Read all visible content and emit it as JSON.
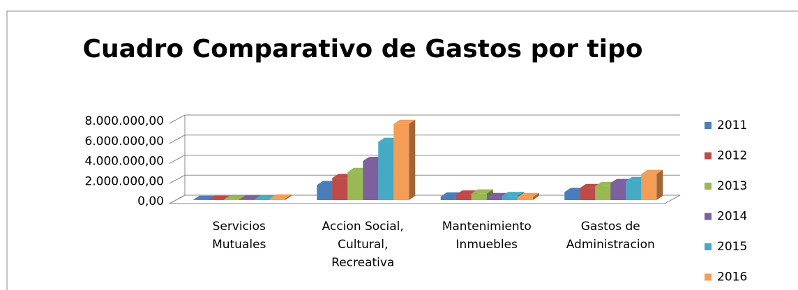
{
  "chart_data": {
    "type": "bar3d",
    "title": "Cuadro Comparativo de Gastos por tipo",
    "categories": [
      "Servicios Mutuales",
      "Accion Social, Cultural, Recreativa",
      "Mantenimiento Inmuebles",
      "Gastos de Administracion"
    ],
    "series": [
      {
        "name": "2011",
        "color": "#4a7ebb",
        "values": [
          20000,
          1500000,
          350000,
          800000
        ]
      },
      {
        "name": "2012",
        "color": "#be4b48",
        "values": [
          30000,
          2200000,
          550000,
          1200000
        ]
      },
      {
        "name": "2013",
        "color": "#98b954",
        "values": [
          40000,
          2800000,
          650000,
          1400000
        ]
      },
      {
        "name": "2014",
        "color": "#7d60a0",
        "values": [
          50000,
          3900000,
          300000,
          1700000
        ]
      },
      {
        "name": "2015",
        "color": "#46aac5",
        "values": [
          80000,
          5800000,
          400000,
          1900000
        ]
      },
      {
        "name": "2016",
        "color": "#f59d56",
        "values": [
          150000,
          7600000,
          300000,
          2600000
        ]
      }
    ],
    "ylim": [
      0,
      8000000
    ],
    "yticks": [
      {
        "value": 0,
        "label": "0,00"
      },
      {
        "value": 2000000,
        "label": "2.000.000,00"
      },
      {
        "value": 4000000,
        "label": "4.000.000,00"
      },
      {
        "value": 6000000,
        "label": "6.000.000,00"
      },
      {
        "value": 8000000,
        "label": "8.000.000,00"
      }
    ],
    "grid": true,
    "legend": "right"
  }
}
